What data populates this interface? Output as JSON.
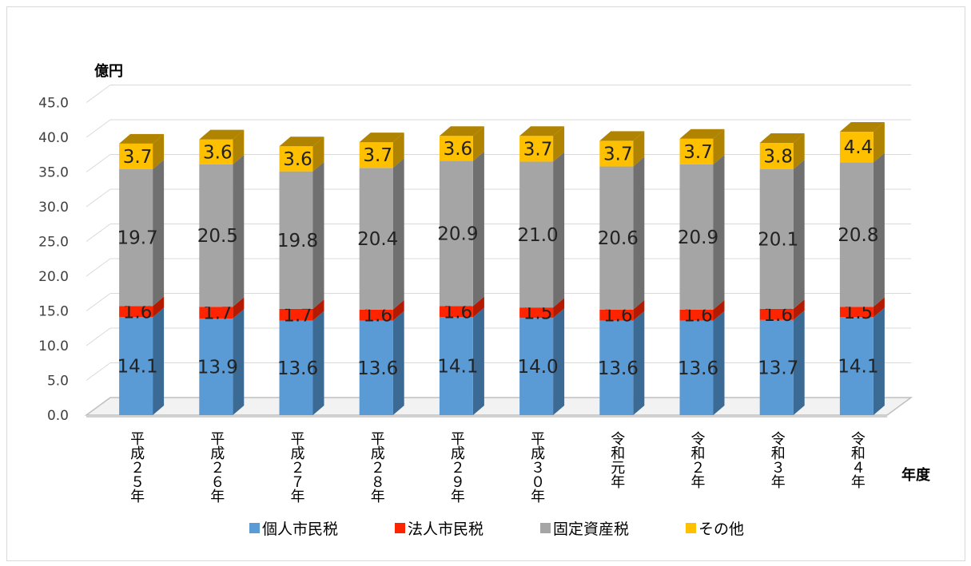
{
  "chart_data": {
    "type": "bar",
    "stacked": true,
    "three_d": true,
    "ylabel": "億円",
    "xlabel": "年度",
    "ylim": [
      0,
      45
    ],
    "ytick_step": 5,
    "ytick_labels": [
      "0.0",
      "5.0",
      "10.0",
      "15.0",
      "20.0",
      "25.0",
      "30.0",
      "35.0",
      "40.0",
      "45.0"
    ],
    "grid": true,
    "legend_position": "bottom",
    "categories": [
      "平成２５年",
      "平成２６年",
      "平成２７年",
      "平成２８年",
      "平成２９年",
      "平成３０年",
      "令和元年",
      "令和２年",
      "令和３年",
      "令和４年"
    ],
    "series": [
      {
        "name": "個人市民税",
        "color": "#5b9bd5",
        "side": "#3b6a95",
        "values": [
          14.1,
          13.9,
          13.6,
          13.6,
          14.1,
          14.0,
          13.6,
          13.6,
          13.7,
          14.1
        ],
        "labels": [
          "14.1",
          "13.9",
          "13.6",
          "13.6",
          "14.1",
          "14.0",
          "13.6",
          "13.6",
          "13.7",
          "14.1"
        ]
      },
      {
        "name": "法人市民税",
        "color": "#ff2400",
        "side": "#b31a00",
        "values": [
          1.6,
          1.7,
          1.7,
          1.6,
          1.6,
          1.5,
          1.6,
          1.6,
          1.6,
          1.5
        ],
        "labels": [
          "1.6",
          "1.7",
          "1.7",
          "1.6",
          "1.6",
          "1.5",
          "1.6",
          "1.6",
          "1.6",
          "1.5"
        ]
      },
      {
        "name": "固定資産税",
        "color": "#a5a5a5",
        "side": "#707070",
        "values": [
          19.7,
          20.5,
          19.8,
          20.4,
          20.9,
          21.0,
          20.6,
          20.9,
          20.1,
          20.8
        ],
        "labels": [
          "19.7",
          "20.5",
          "19.8",
          "20.4",
          "20.9",
          "21.0",
          "20.6",
          "20.9",
          "20.1",
          "20.8"
        ]
      },
      {
        "name": "その他",
        "color": "#ffc000",
        "side": "#b08400",
        "values": [
          3.7,
          3.6,
          3.6,
          3.7,
          3.6,
          3.7,
          3.7,
          3.7,
          3.8,
          4.4
        ],
        "labels": [
          "3.7",
          "3.6",
          "3.6",
          "3.7",
          "3.6",
          "3.7",
          "3.7",
          "3.7",
          "3.8",
          "4.4"
        ]
      }
    ]
  }
}
